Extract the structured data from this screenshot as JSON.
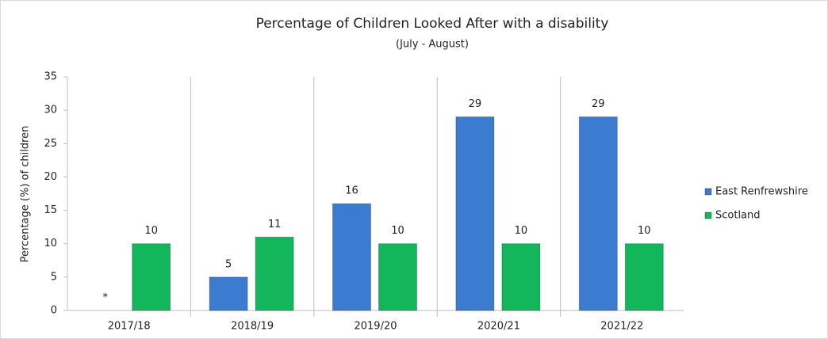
{
  "chart_data": {
    "type": "bar",
    "title": "Percentage of Children Looked After with a disability",
    "subtitle": "(July - August)",
    "y_label": "Percentage (%) of children",
    "categories": [
      "2017/18",
      "2018/19",
      "2019/20",
      "2020/21",
      "2021/22"
    ],
    "series": [
      {
        "name": "East Renfrewshire",
        "color": "#3b7bd0",
        "values": [
          null,
          5,
          16,
          29,
          29
        ],
        "value_labels": [
          "*",
          "5",
          "16",
          "29",
          "29"
        ]
      },
      {
        "name": "Scotland",
        "color": "#13b65a",
        "values": [
          10,
          11,
          10,
          10,
          10
        ]
      }
    ],
    "ylim": [
      0,
      35
    ],
    "yticks": [
      0,
      5,
      10,
      15,
      20,
      25,
      30,
      35
    ],
    "legend": "right"
  }
}
